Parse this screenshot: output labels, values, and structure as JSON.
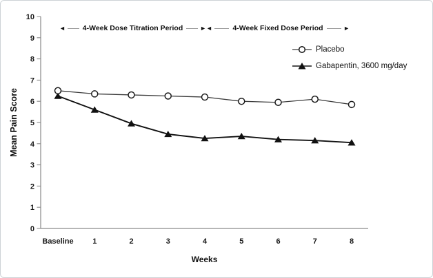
{
  "figure": {
    "y_axis_title": "Mean Pain Score",
    "x_axis_title": "Weeks",
    "icons": {
      "arrow_left": "◄",
      "arrow_right": "►"
    },
    "annotations": [
      {
        "label": "4-Week Dose Titration Period"
      },
      {
        "label": "4-Week Fixed Dose Period"
      }
    ],
    "legend": [
      {
        "label": "Placebo",
        "marker": "open-circle"
      },
      {
        "label": "Gabapentin, 3600 mg/day",
        "marker": "filled-triangle"
      }
    ]
  },
  "chart_data": {
    "type": "line",
    "categories": [
      "Baseline",
      "1",
      "2",
      "3",
      "4",
      "5",
      "6",
      "7",
      "8"
    ],
    "series": [
      {
        "name": "Placebo",
        "marker": "open-circle",
        "values": [
          6.5,
          6.35,
          6.3,
          6.25,
          6.2,
          6.0,
          5.95,
          6.1,
          5.85
        ]
      },
      {
        "name": "Gabapentin, 3600 mg/day",
        "marker": "filled-triangle",
        "values": [
          6.25,
          5.6,
          4.95,
          4.45,
          4.25,
          4.35,
          4.2,
          4.15,
          4.05
        ]
      }
    ],
    "title": "",
    "xlabel": "Weeks",
    "ylabel": "Mean Pain Score",
    "ylim": [
      0,
      10
    ],
    "y_ticks": [
      0,
      1,
      2,
      3,
      4,
      5,
      6,
      7,
      8,
      9,
      10
    ],
    "grid": false,
    "legend_position": "upper-right",
    "period_annotations": [
      {
        "label": "4-Week Dose Titration Period",
        "x_start": "Baseline",
        "x_end": "4"
      },
      {
        "label": "4-Week Fixed Dose Period",
        "x_start": "4",
        "x_end": "8"
      }
    ]
  }
}
